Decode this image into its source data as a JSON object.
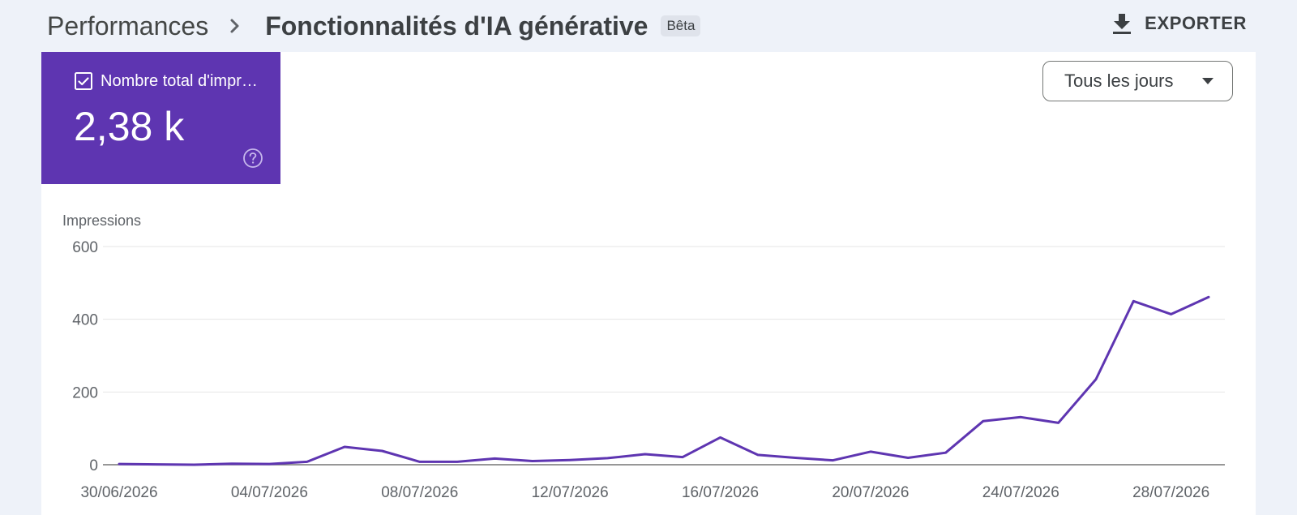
{
  "breadcrumb": {
    "parent": "Performances",
    "current": "Fonctionnalités d'IA générative",
    "badge": "Bêta",
    "separator_icon": "chevron-right-icon"
  },
  "toolbar": {
    "export_label": "EXPORTER",
    "export_icon": "download-icon"
  },
  "metric": {
    "label": "Nombre total d'impressions",
    "value": "2,38 k",
    "checked": true,
    "color": "#5e35b1",
    "help_icon": "help-circle-icon"
  },
  "period_select": {
    "value": "Tous les jours",
    "icon": "caret-down-icon"
  },
  "chart_data": {
    "type": "line",
    "title": "",
    "ylabel": "Impressions",
    "xlabel": "",
    "ylim": [
      0,
      600
    ],
    "yticks": [
      0,
      200,
      400,
      600
    ],
    "grid": true,
    "x": [
      "30/06/2026",
      "01/07/2026",
      "02/07/2026",
      "03/07/2026",
      "04/07/2026",
      "05/07/2026",
      "06/07/2026",
      "07/07/2026",
      "08/07/2026",
      "09/07/2026",
      "10/07/2026",
      "11/07/2026",
      "12/07/2026",
      "13/07/2026",
      "14/07/2026",
      "15/07/2026",
      "16/07/2026",
      "17/07/2026",
      "18/07/2026",
      "19/07/2026",
      "20/07/2026",
      "21/07/2026",
      "22/07/2026",
      "23/07/2026",
      "24/07/2026",
      "25/07/2026",
      "26/07/2026",
      "27/07/2026",
      "28/07/2026",
      "29/07/2026"
    ],
    "x_tick_labels": [
      "30/06/2026",
      "04/07/2026",
      "08/07/2026",
      "12/07/2026",
      "16/07/2026",
      "20/07/2026",
      "24/07/2026",
      "28/07/2026"
    ],
    "x_tick_indices": [
      0,
      4,
      8,
      12,
      16,
      20,
      24,
      28
    ],
    "series": [
      {
        "color": "#5e35b1",
        "values": [
          2,
          1,
          0,
          3,
          2,
          8,
          49,
          38,
          8,
          8,
          17,
          10,
          13,
          18,
          29,
          21,
          75,
          27,
          19,
          12,
          36,
          19,
          33,
          120,
          131,
          115,
          235,
          450,
          414,
          461
        ]
      }
    ]
  }
}
